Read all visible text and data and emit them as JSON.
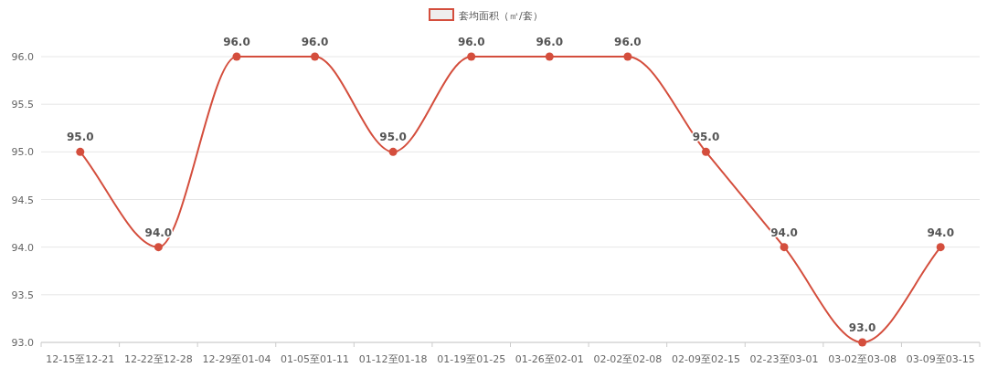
{
  "chart_data": {
    "type": "line",
    "categories": [
      "12-15至12-21",
      "12-22至12-28",
      "12-29至01-04",
      "01-05至01-11",
      "01-12至01-18",
      "01-19至01-25",
      "01-26至02-01",
      "02-02至02-08",
      "02-09至02-15",
      "02-23至03-01",
      "03-02至03-08",
      "03-09至03-15"
    ],
    "series": [
      {
        "name": "套均面积（㎡/套）",
        "color": "#d44e3d",
        "values": [
          95.0,
          94.0,
          96.0,
          96.0,
          95.0,
          96.0,
          96.0,
          96.0,
          95.0,
          94.0,
          93.0,
          94.0
        ],
        "value_labels": [
          "95.0",
          "94.0",
          "96.0",
          "96.0",
          "95.0",
          "96.0",
          "96.0",
          "96.0",
          "95.0",
          "94.0",
          "93.0",
          "94.0"
        ]
      }
    ],
    "ylim": [
      93.0,
      96.0
    ],
    "yticks": [
      {
        "value": 93,
        "label": "93.0"
      },
      {
        "value": 93.5,
        "label": "93.5"
      },
      {
        "value": 94,
        "label": "94.0"
      },
      {
        "value": 94.5,
        "label": "94.5"
      },
      {
        "value": 95,
        "label": "95.0"
      },
      {
        "value": 95.5,
        "label": "95.5"
      },
      {
        "value": 96,
        "label": "96.0"
      }
    ],
    "grid": "y",
    "legend": "top",
    "marker": "circle",
    "line_style": "solid"
  }
}
